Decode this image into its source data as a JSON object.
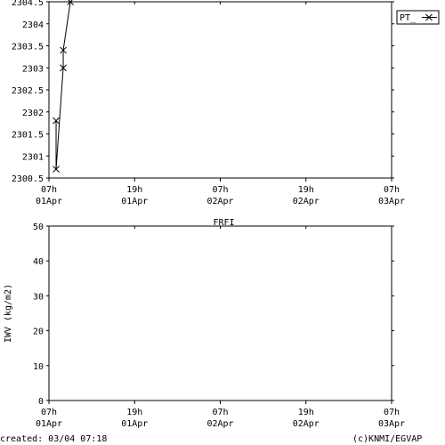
{
  "chart_data": [
    {
      "type": "line",
      "title": "",
      "xlabel": "",
      "ylabel": "",
      "xlim": [
        "2025-04-01 07:00",
        "2025-04-03 07:00"
      ],
      "ylim": [
        2300.5,
        2304.5
      ],
      "x_ticks": [
        {
          "line1": "07h",
          "line2": "01Apr"
        },
        {
          "line1": "19h",
          "line2": "01Apr"
        },
        {
          "line1": "07h",
          "line2": "02Apr"
        },
        {
          "line1": "19h",
          "line2": "02Apr"
        },
        {
          "line1": "07h",
          "line2": "03Apr"
        }
      ],
      "y_ticks": [
        "2300.5",
        "2301",
        "2301.5",
        "2302",
        "2302.5",
        "2303",
        "2303.5",
        "2304",
        "2304.5"
      ],
      "legend": {
        "placement": "right",
        "entries": [
          "PT_"
        ]
      },
      "series": [
        {
          "name": "PT_",
          "marker": "x",
          "color": "#000000",
          "x": [
            "2025-04-01 08:00",
            "2025-04-01 08:00",
            "2025-04-01 09:00",
            "2025-04-01 09:00",
            "2025-04-01 10:00"
          ],
          "y": [
            2301.8,
            2300.7,
            2303.0,
            2303.4,
            2304.5
          ]
        }
      ]
    },
    {
      "type": "line",
      "title": "FRFI",
      "xlabel": "",
      "ylabel": "IWV (kg/m2)",
      "xlim": [
        "2025-04-01 07:00",
        "2025-04-03 07:00"
      ],
      "ylim": [
        0,
        50
      ],
      "x_ticks": [
        {
          "line1": "07h",
          "line2": "01Apr"
        },
        {
          "line1": "19h",
          "line2": "01Apr"
        },
        {
          "line1": "07h",
          "line2": "02Apr"
        },
        {
          "line1": "19h",
          "line2": "02Apr"
        },
        {
          "line1": "07h",
          "line2": "03Apr"
        }
      ],
      "y_ticks": [
        "0",
        "10",
        "20",
        "30",
        "40",
        "50"
      ],
      "series": []
    }
  ],
  "footer": {
    "created": "created: 03/04 07:18",
    "credit": "(c)KNMI/EGVAP"
  }
}
